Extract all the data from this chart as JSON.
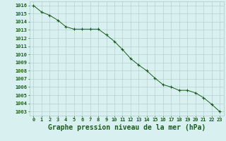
{
  "x": [
    0,
    1,
    2,
    3,
    4,
    5,
    6,
    7,
    8,
    9,
    10,
    11,
    12,
    13,
    14,
    15,
    16,
    17,
    18,
    19,
    20,
    21,
    22,
    23
  ],
  "y": [
    1016.0,
    1015.2,
    1014.8,
    1014.2,
    1013.4,
    1013.1,
    1013.1,
    1013.1,
    1013.1,
    1012.4,
    1011.6,
    1010.6,
    1009.5,
    1008.7,
    1008.0,
    1007.1,
    1006.3,
    1006.0,
    1005.6,
    1005.6,
    1005.3,
    1004.7,
    1003.9,
    1003.0
  ],
  "line_color": "#1a5c1a",
  "marker": "+",
  "marker_size": 3,
  "marker_linewidth": 0.8,
  "line_width": 0.7,
  "bg_color": "#d8f0f0",
  "grid_color": "#aec8c8",
  "ylabel_ticks": [
    1003,
    1004,
    1005,
    1006,
    1007,
    1008,
    1009,
    1010,
    1011,
    1012,
    1013,
    1014,
    1015,
    1016
  ],
  "xlabel": "Graphe pression niveau de la mer (hPa)",
  "xlim": [
    -0.5,
    23.5
  ],
  "ylim": [
    1002.5,
    1016.5
  ],
  "tick_fontsize": 5.0,
  "label_fontsize": 7.0
}
